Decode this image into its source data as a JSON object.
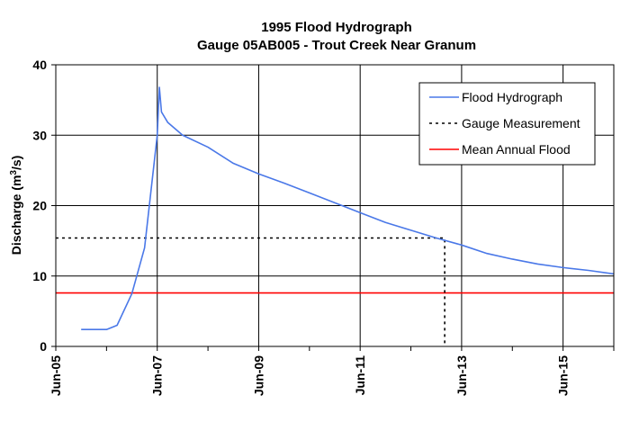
{
  "chart_data": {
    "type": "line",
    "title": "1995 Flood Hydrograph",
    "subtitle": "Gauge 05AB005 - Trout Creek Near Granum",
    "ylabel": "Discharge (m",
    "ylabel_sup": "3",
    "ylabel_end": "/s)",
    "xlabel": "",
    "ylim": [
      0,
      40
    ],
    "y_ticks": [
      0,
      10,
      20,
      30,
      40
    ],
    "x_tick_labels": [
      "Jun-05",
      "Jun-07",
      "Jun-09",
      "Jun-11",
      "Jun-13",
      "Jun-15"
    ],
    "xlim": [
      "1995-06-05",
      "1995-06-16"
    ],
    "grid": true,
    "legend": "top-right",
    "series": [
      {
        "name": "Flood Hydrograph",
        "color": "#4a78e8",
        "style": "solid",
        "points": [
          [
            "1995-06-05 12:00",
            2.4
          ],
          [
            "1995-06-06 00:00",
            2.4
          ],
          [
            "1995-06-06 05:00",
            3.0
          ],
          [
            "1995-06-06 12:00",
            7.5
          ],
          [
            "1995-06-06 18:00",
            14.0
          ],
          [
            "1995-06-07 00:00",
            30.0
          ],
          [
            "1995-06-07 01:00",
            36.8
          ],
          [
            "1995-06-07 02:00",
            33.3
          ],
          [
            "1995-06-07 05:00",
            31.8
          ],
          [
            "1995-06-07 12:00",
            30.0
          ],
          [
            "1995-06-08 00:00",
            28.3
          ],
          [
            "1995-06-08 12:00",
            26.0
          ],
          [
            "1995-06-09 00:00",
            24.5
          ],
          [
            "1995-06-09 12:00",
            23.2
          ],
          [
            "1995-06-10 00:00",
            21.8
          ],
          [
            "1995-06-10 12:00",
            20.4
          ],
          [
            "1995-06-11 00:00",
            19.0
          ],
          [
            "1995-06-11 12:00",
            17.6
          ],
          [
            "1995-06-12 00:00",
            16.5
          ],
          [
            "1995-06-12 12:00",
            15.4
          ],
          [
            "1995-06-13 00:00",
            14.4
          ],
          [
            "1995-06-13 12:00",
            13.2
          ],
          [
            "1995-06-14 00:00",
            12.4
          ],
          [
            "1995-06-14 12:00",
            11.7
          ],
          [
            "1995-06-15 00:00",
            11.2
          ],
          [
            "1995-06-15 12:00",
            10.8
          ],
          [
            "1995-06-16 00:00",
            10.3
          ]
        ]
      },
      {
        "name": "Gauge Measurement",
        "color": "#000000",
        "style": "dotted",
        "points": [
          [
            "1995-06-05 00:00",
            15.4
          ],
          [
            "1995-06-12 16:00",
            15.4
          ],
          [
            "1995-06-12 16:00",
            0
          ]
        ]
      },
      {
        "name": "Mean Annual Flood",
        "color": "#ff0000",
        "style": "solid",
        "points": [
          [
            "1995-06-05 00:00",
            7.6
          ],
          [
            "1995-06-16 00:00",
            7.6
          ]
        ]
      }
    ]
  }
}
